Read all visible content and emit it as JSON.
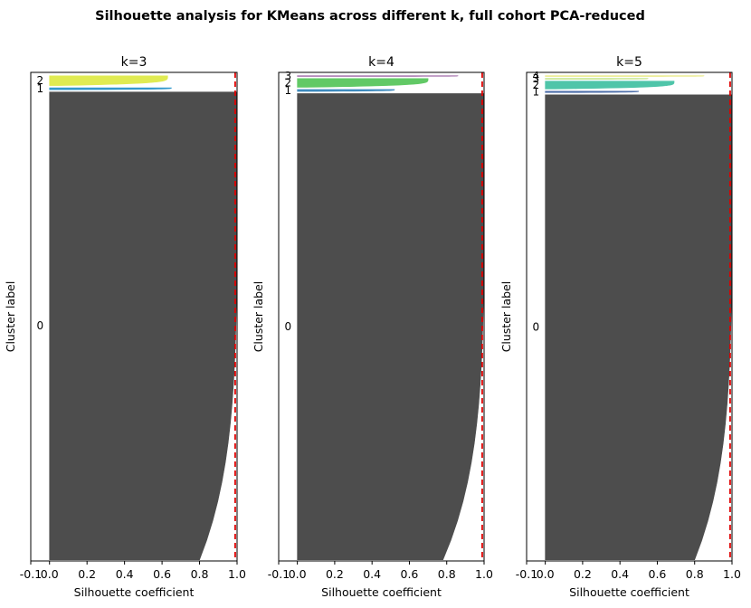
{
  "suptitle": "Silhouette analysis for KMeans across different k, full cohort PCA-reduced",
  "colors": {
    "cluster0": "#4d4d4d",
    "average_line": "#e00000",
    "k3": [
      "#4d4d4d",
      "#1f8fc8",
      "#dde940"
    ],
    "k4": [
      "#4d4d4d",
      "#2a7fb8",
      "#52c456",
      "#7b2f86"
    ],
    "k5": [
      "#4d4d4d",
      "#3a5fa0",
      "#3cbfa0",
      "#9fd84a",
      "#e0e14b"
    ]
  },
  "chart_data": [
    {
      "type": "area",
      "title": "k=3",
      "xlabel": "Silhouette coefficient",
      "ylabel": "Cluster label",
      "xlim": [
        -0.1,
        1.0
      ],
      "xticks": [
        "-0.1",
        "0.0",
        "0.2",
        "0.4",
        "0.6",
        "0.8",
        "1.0"
      ],
      "average_silhouette": 0.99,
      "clusters": [
        {
          "label": "0",
          "size_fraction": 0.955,
          "max": 1.0,
          "min": 0.8
        },
        {
          "label": "1",
          "size_fraction": 0.004,
          "max": 0.65,
          "min": 0.1
        },
        {
          "label": "2",
          "size_fraction": 0.02,
          "max": 0.63,
          "min": 0.05
        }
      ]
    },
    {
      "type": "area",
      "title": "k=4",
      "xlabel": "Silhouette coefficient",
      "ylabel": "Cluster label",
      "xlim": [
        -0.1,
        1.0
      ],
      "xticks": [
        "-0.1",
        "0.0",
        "0.2",
        "0.4",
        "0.6",
        "0.8",
        "1.0"
      ],
      "average_silhouette": 0.99,
      "clusters": [
        {
          "label": "0",
          "size_fraction": 0.955,
          "max": 1.0,
          "min": 0.78
        },
        {
          "label": "1",
          "size_fraction": 0.004,
          "max": 0.52,
          "min": 0.1
        },
        {
          "label": "2",
          "size_fraction": 0.018,
          "max": 0.7,
          "min": 0.05
        },
        {
          "label": "3",
          "size_fraction": 0.001,
          "max": 0.86,
          "min": 0.5
        }
      ]
    },
    {
      "type": "area",
      "title": "k=5",
      "xlabel": "Silhouette coefficient",
      "ylabel": "Cluster label",
      "xlim": [
        -0.1,
        1.0
      ],
      "xticks": [
        "-0.1",
        "0.0",
        "0.2",
        "0.4",
        "0.6",
        "0.8",
        "1.0"
      ],
      "average_silhouette": 0.99,
      "clusters": [
        {
          "label": "0",
          "size_fraction": 0.955,
          "max": 1.0,
          "min": 0.8
        },
        {
          "label": "1",
          "size_fraction": 0.003,
          "max": 0.5,
          "min": 0.1
        },
        {
          "label": "2",
          "size_fraction": 0.016,
          "max": 0.69,
          "min": 0.05
        },
        {
          "label": "3",
          "size_fraction": 0.001,
          "max": 0.55,
          "min": 0.3
        },
        {
          "label": "4",
          "size_fraction": 0.001,
          "max": 0.85,
          "min": 0.5
        }
      ]
    }
  ]
}
